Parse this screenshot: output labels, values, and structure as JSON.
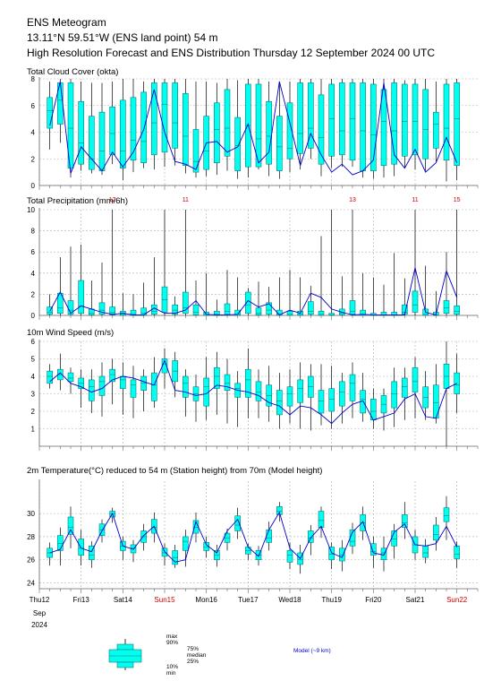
{
  "header": {
    "title": "ENS Meteogram",
    "location": "13.11°N 59.51°W (ENS land point) 54 m",
    "subtitle": "High Resolution Forecast and ENS Distribution Thursday 12 September 2024 00 UTC"
  },
  "colors": {
    "box": "#00ffee",
    "hires": "#0000cc",
    "grid": "#b0b0b0",
    "sunday": "#cc0000",
    "whisker": "#000000"
  },
  "x_axis": {
    "days": [
      "Thu12",
      "Fri13",
      "Sat14",
      "Sun15",
      "Mon16",
      "Tue17",
      "Wed18",
      "Thu19",
      "Fri20",
      "Sat21",
      "Sun22"
    ],
    "sunday_days": [
      "Sun15",
      "Sun22"
    ],
    "month": "Sep",
    "year": "2024"
  },
  "legend": {
    "max": "max",
    "p90": "90%",
    "p75": "75%",
    "median": "median",
    "p25": "25%",
    "p10": "10%",
    "min": "min",
    "hires": "Model (~9 km)"
  },
  "chart_data": [
    {
      "type": "box",
      "title": "Total Cloud Cover (okta)",
      "ylim": [
        0,
        8
      ],
      "yticks": [
        0,
        2,
        4,
        6,
        8
      ],
      "x_unit": "days from Thu12 00 UTC",
      "x": [
        0.25,
        0.5,
        0.75,
        1,
        1.25,
        1.5,
        1.75,
        2,
        2.25,
        2.5,
        2.75,
        3,
        3.25,
        3.5,
        3.75,
        4,
        4.25,
        4.5,
        4.75,
        5,
        5.25,
        5.5,
        5.75,
        6,
        6.25,
        6.5,
        6.75,
        7,
        7.25,
        7.5,
        7.75,
        8,
        8.25,
        8.5,
        8.75,
        9,
        9.25,
        9.5,
        9.75,
        10
      ],
      "whisker_low": [
        2.7,
        3.2,
        0.6,
        1.1,
        0.9,
        0.8,
        1.6,
        0.4,
        1.0,
        1.3,
        1.2,
        1.4,
        1.5,
        0.9,
        0.6,
        0.7,
        0.8,
        1.1,
        0.5,
        0.6,
        1.2,
        0.7,
        0.5,
        1.0,
        1.2,
        2.0,
        0.7,
        1.3,
        1.4,
        1.4,
        0.6,
        0.5,
        0.6,
        0.7,
        1.3,
        1.2,
        1.1,
        1.8,
        0.3,
        0.4
      ],
      "p25": [
        4.3,
        4.6,
        1.3,
        1.6,
        1.2,
        1.1,
        2.3,
        1.3,
        1.9,
        1.7,
        2.3,
        2.5,
        2.8,
        1.5,
        1.0,
        1.2,
        1.7,
        2.2,
        1.1,
        1.4,
        1.4,
        1.6,
        1.1,
        2.0,
        2.4,
        2.8,
        1.6,
        2.2,
        2.3,
        1.9,
        1.1,
        1.1,
        1.5,
        1.6,
        2.2,
        2.3,
        2.0,
        2.8,
        1.9,
        1.5
      ],
      "median": [
        5.6,
        6.4,
        4.3,
        3.2,
        2.0,
        2.6,
        3.9,
        2.6,
        3.4,
        3.3,
        4.7,
        6.1,
        4.7,
        3.7,
        1.8,
        2.6,
        4.2,
        4.3,
        3.0,
        4.5,
        3.5,
        3.7,
        2.9,
        2.8,
        3.9,
        4.3,
        3.6,
        5.0,
        4.1,
        5.0,
        4.1,
        3.8,
        4.8,
        4.1,
        4.8,
        4.8,
        4.2,
        4.6,
        4.3,
        5.0
      ],
      "p75": [
        6.6,
        7.7,
        7.7,
        6.3,
        5.2,
        5.5,
        5.9,
        6.4,
        6.6,
        7.0,
        7.7,
        7.7,
        7.7,
        6.9,
        4.2,
        5.2,
        6.2,
        7.2,
        5.1,
        7.6,
        7.6,
        6.3,
        5.2,
        6.2,
        7.7,
        7.7,
        6.8,
        7.6,
        7.7,
        7.7,
        7.7,
        7.6,
        7.2,
        7.7,
        7.6,
        7.6,
        7.2,
        5.5,
        7.6,
        7.7
      ],
      "whisker_high": [
        7.8,
        8,
        8,
        7.8,
        7.7,
        7.7,
        7.8,
        8,
        8,
        7.8,
        8,
        8,
        8,
        8,
        7.8,
        7.8,
        7.7,
        8,
        7.9,
        8,
        8,
        7.8,
        7.7,
        7.8,
        8,
        8,
        8,
        8,
        8,
        8,
        8,
        8,
        8,
        8,
        7.9,
        8,
        8,
        7.8,
        8,
        8
      ],
      "hires": [
        4.5,
        7.8,
        0.9,
        2.9,
        2.0,
        1.1,
        2.5,
        1.4,
        2.5,
        4.2,
        7.2,
        4.0,
        1.8,
        1.6,
        1.2,
        3.2,
        3.3,
        2.5,
        2.9,
        4.6,
        1.7,
        2.5,
        7.8,
        4.7,
        1.5,
        3.9,
        2.3,
        1.0,
        1.6,
        0.8,
        1.1,
        1.9,
        7.7,
        2.3,
        1.3,
        2.7,
        1.0,
        1.7,
        3.6,
        1.7
      ]
    },
    {
      "type": "box",
      "title": "Total Precipitation (mm/6h)",
      "ylim": [
        0,
        10
      ],
      "yticks": [
        0,
        2,
        4,
        6,
        8,
        10
      ],
      "clipped_max_labels": [
        {
          "x": 1.75,
          "label": "12"
        },
        {
          "x": 3.5,
          "label": "11"
        },
        {
          "x": 7.5,
          "label": "13"
        },
        {
          "x": 9.0,
          "label": "11"
        },
        {
          "x": 10.0,
          "label": "15"
        }
      ],
      "x": [
        0.25,
        0.5,
        0.75,
        1,
        1.25,
        1.5,
        1.75,
        2,
        2.25,
        2.5,
        2.75,
        3,
        3.25,
        3.5,
        3.75,
        4,
        4.25,
        4.5,
        4.75,
        5,
        5.25,
        5.5,
        5.75,
        6,
        6.25,
        6.5,
        6.75,
        7,
        7.25,
        7.5,
        7.75,
        8,
        8.25,
        8.5,
        8.75,
        9,
        9.25,
        9.5,
        9.75,
        10
      ],
      "whisker_low": [
        0,
        0,
        0,
        0,
        0,
        0,
        0,
        0,
        0,
        0,
        0,
        0,
        0,
        0,
        0,
        0,
        0,
        0,
        0,
        0,
        0,
        0,
        0,
        0,
        0,
        0,
        0,
        0,
        0,
        0,
        0,
        0,
        0,
        0,
        0,
        0,
        0,
        0,
        0,
        0
      ],
      "p25": [
        0.1,
        0.2,
        0.1,
        0.2,
        0.05,
        0.1,
        0.05,
        0,
        0,
        0,
        0.1,
        0.3,
        0.1,
        0.2,
        0.05,
        0,
        0,
        0.1,
        0,
        0.2,
        0.05,
        0.1,
        0,
        0,
        0,
        0.1,
        0,
        0,
        0.05,
        0.1,
        0,
        0,
        0,
        0,
        0.1,
        0.3,
        0,
        0,
        0.2,
        0.1
      ],
      "median": [
        0.3,
        0.7,
        0.5,
        0.9,
        0.2,
        0.5,
        0.3,
        0.1,
        0.1,
        0.2,
        0.4,
        1.5,
        0.5,
        0.7,
        0.3,
        0.1,
        0.1,
        0.4,
        0.1,
        1.0,
        0.2,
        0.5,
        0.1,
        0.1,
        0.1,
        0.4,
        0.1,
        0.05,
        0.2,
        0.4,
        0.1,
        0.05,
        0.05,
        0.05,
        0.3,
        1.0,
        0.1,
        0.05,
        0.7,
        0.4
      ],
      "p75": [
        0.8,
        2.1,
        1.4,
        3.3,
        0.6,
        1.2,
        0.8,
        0.4,
        0.5,
        0.7,
        1.0,
        2.7,
        1.0,
        2.2,
        1.0,
        0.3,
        0.4,
        1.1,
        0.5,
        2.2,
        0.7,
        1.2,
        0.5,
        0.4,
        0.4,
        1.3,
        0.4,
        0.2,
        0.6,
        1.4,
        0.5,
        0.2,
        0.3,
        0.3,
        1.0,
        2.3,
        0.6,
        0.3,
        1.4,
        0.9
      ],
      "whisker_high": [
        2.0,
        5.5,
        6.5,
        6.7,
        3.3,
        5.0,
        10,
        2.1,
        2.0,
        3.1,
        5.5,
        10,
        1.8,
        10,
        3.3,
        4.0,
        1.5,
        4.3,
        3.6,
        2.6,
        3.2,
        2.7,
        3.6,
        4.3,
        3.6,
        2.8,
        7.5,
        10,
        3.7,
        10,
        4.0,
        3.6,
        2.9,
        5.9,
        3.5,
        10,
        4.7,
        2.3,
        6.0,
        10
      ],
      "hires": [
        0.4,
        2.2,
        0.2,
        0.9,
        0.6,
        0.3,
        0.1,
        0.2,
        0.05,
        0.05,
        0.7,
        0.2,
        0.2,
        0.5,
        1.4,
        0.1,
        0.05,
        0.05,
        0.1,
        1.4,
        0.8,
        1.1,
        0.05,
        0.5,
        0.2,
        2.1,
        1.7,
        0.6,
        0.3,
        0.05,
        0.1,
        0.05,
        0.05,
        0.05,
        0.05,
        4.5,
        0.3,
        0.05,
        4.2,
        1.7
      ]
    },
    {
      "type": "box",
      "title": "10m Wind Speed (m/s)",
      "ylim": [
        0,
        6
      ],
      "yticks": [
        1,
        2,
        3,
        4,
        5,
        6
      ],
      "x": [
        0.25,
        0.5,
        0.75,
        1,
        1.25,
        1.5,
        1.75,
        2,
        2.25,
        2.5,
        2.75,
        3,
        3.25,
        3.5,
        3.75,
        4,
        4.25,
        4.5,
        4.75,
        5,
        5.25,
        5.5,
        5.75,
        6,
        6.25,
        6.5,
        6.75,
        7,
        7.25,
        7.5,
        7.75,
        8,
        8.25,
        8.5,
        8.75,
        9,
        9.25,
        9.5,
        9.75,
        10
      ],
      "whisker_low": [
        3.3,
        3.2,
        3.0,
        2.2,
        1.9,
        1.7,
        2.4,
        1.8,
        1.6,
        2.0,
        2.2,
        3.3,
        2.8,
        1.7,
        1.4,
        1.5,
        1.8,
        1.3,
        1.1,
        1.6,
        1.6,
        1.4,
        1.0,
        1.3,
        1.0,
        0.9,
        1.2,
        1.0,
        1.3,
        1.6,
        1.4,
        1.0,
        0.9,
        1.1,
        1.5,
        1.6,
        1.5,
        1.3,
        0,
        1.9
      ],
      "p25": [
        3.6,
        3.8,
        3.7,
        3.3,
        2.6,
        2.9,
        3.7,
        3.3,
        2.8,
        3.2,
        2.6,
        4.2,
        3.7,
        2.8,
        2.6,
        2.3,
        3.3,
        3.2,
        2.8,
        2.8,
        2.6,
        2.3,
        1.8,
        2.3,
        2.5,
        2.8,
        1.9,
        2.0,
        2.3,
        2.6,
        1.9,
        1.5,
        1.9,
        2.2,
        2.8,
        3.1,
        2.2,
        1.6,
        3.3,
        3.0
      ],
      "median": [
        4.0,
        4.1,
        3.9,
        3.6,
        3.4,
        3.7,
        4.1,
        3.8,
        3.5,
        3.6,
        3.5,
        4.7,
        4.3,
        3.6,
        3.0,
        3.4,
        4.0,
        3.6,
        3.3,
        3.8,
        3.1,
        2.9,
        2.6,
        3.0,
        3.3,
        3.4,
        2.6,
        2.7,
        3.1,
        3.6,
        2.7,
        2.0,
        2.4,
        3.0,
        3.4,
        3.7,
        2.8,
        2.5,
        4.0,
        3.5
      ],
      "p75": [
        4.3,
        4.4,
        4.2,
        3.9,
        3.8,
        4.0,
        4.4,
        4.0,
        3.8,
        4.0,
        4.2,
        5.0,
        4.9,
        4.0,
        3.4,
        3.9,
        4.5,
        4.1,
        3.6,
        4.4,
        3.7,
        3.5,
        3.2,
        3.4,
        3.8,
        4.0,
        3.2,
        3.3,
        3.7,
        4.1,
        3.2,
        2.7,
        2.9,
        3.7,
        3.9,
        4.5,
        3.4,
        3.5,
        4.7,
        4.2
      ],
      "whisker_high": [
        4.7,
        5.3,
        4.5,
        4.4,
        4.4,
        4.8,
        5.0,
        4.8,
        4.6,
        4.4,
        5.1,
        5.6,
        5.4,
        4.4,
        4.1,
        5.1,
        5.4,
        5.0,
        4.3,
        5.6,
        4.4,
        4.6,
        4.2,
        4.4,
        4.8,
        4.7,
        4.7,
        4.6,
        4.2,
        4.8,
        4.2,
        3.3,
        3.3,
        4.5,
        4.5,
        5.1,
        4.3,
        4.7,
        6.0,
        5.3
      ],
      "hires": [
        3.7,
        4.2,
        3.6,
        3.4,
        3.1,
        3.3,
        3.8,
        4.0,
        3.9,
        3.7,
        3.5,
        4.9,
        3.2,
        3.1,
        2.9,
        3.0,
        3.5,
        3.4,
        3.2,
        3.1,
        2.9,
        2.5,
        2.3,
        1.8,
        2.3,
        2.2,
        1.8,
        1.3,
        1.9,
        2.4,
        2.6,
        1.5,
        1.7,
        1.9,
        2.7,
        3.0,
        1.7,
        1.6,
        3.3,
        3.6
      ]
    },
    {
      "type": "box",
      "title": "2m Temperature(°C) reduced to 54 m (Station height) from 70m (Model height)",
      "ylim": [
        23.5,
        32.8
      ],
      "yticks": [
        24,
        26,
        28,
        30
      ],
      "x": [
        0.25,
        0.5,
        0.75,
        1,
        1.25,
        1.5,
        1.75,
        2,
        2.25,
        2.5,
        2.75,
        3,
        3.25,
        3.5,
        3.75,
        4,
        4.25,
        4.5,
        4.75,
        5,
        5.25,
        5.5,
        5.75,
        6,
        6.25,
        6.5,
        6.75,
        7,
        7.25,
        7.5,
        7.75,
        8,
        8.25,
        8.5,
        8.75,
        9,
        9.25,
        9.5,
        9.75,
        10
      ],
      "whisker_low": [
        25.5,
        25.5,
        27.0,
        25.5,
        25.3,
        27.5,
        29.2,
        26.0,
        25.8,
        26.8,
        27.5,
        25.5,
        25.3,
        25.4,
        27.5,
        26.2,
        25.4,
        26.8,
        27.8,
        26.0,
        25.5,
        26.8,
        29.3,
        25.2,
        24.8,
        26.4,
        27.9,
        25.2,
        25.0,
        26.5,
        27.7,
        25.3,
        25.0,
        26.1,
        27.8,
        26.0,
        25.7,
        26.8,
        27.7,
        25.3
      ],
      "p25": [
        26.2,
        26.8,
        28.2,
        26.4,
        26.0,
        28.1,
        29.7,
        26.8,
        26.6,
        27.5,
        28.3,
        26.3,
        25.6,
        26.8,
        28.3,
        26.8,
        26.0,
        27.5,
        28.5,
        26.5,
        26.0,
        27.5,
        29.9,
        25.8,
        25.6,
        27.5,
        28.8,
        26.0,
        25.9,
        27.2,
        28.5,
        26.4,
        26.0,
        27.2,
        28.8,
        26.6,
        26.2,
        27.7,
        29.3,
        26.1
      ],
      "median": [
        26.6,
        27.4,
        28.8,
        27.0,
        26.4,
        28.6,
        30.0,
        27.2,
        27.0,
        28.0,
        28.8,
        26.6,
        26.2,
        27.6,
        28.8,
        27.1,
        26.4,
        27.9,
        29.0,
        26.8,
        26.4,
        27.9,
        30.2,
        26.4,
        26.0,
        27.9,
        29.4,
        26.5,
        26.4,
        27.6,
        29.2,
        26.7,
        26.6,
        27.8,
        29.2,
        27.3,
        26.6,
        28.2,
        29.8,
        26.5
      ],
      "p75": [
        27.0,
        28.1,
        29.7,
        27.8,
        27.2,
        29.1,
        30.2,
        27.6,
        27.3,
        28.5,
        29.5,
        27.0,
        26.8,
        28.0,
        29.4,
        27.5,
        26.8,
        28.3,
        29.8,
        27.1,
        26.8,
        28.6,
        30.6,
        26.8,
        26.6,
        28.5,
        30.2,
        27.1,
        27.0,
        28.6,
        29.9,
        27.4,
        27.0,
        28.5,
        29.9,
        28.0,
        27.2,
        29.0,
        30.5,
        27.2
      ],
      "whisker_high": [
        27.5,
        28.8,
        30.6,
        28.6,
        27.6,
        29.5,
        30.5,
        28.0,
        27.7,
        29.1,
        30.1,
        27.4,
        27.3,
        28.6,
        30.1,
        28.0,
        27.3,
        28.7,
        30.5,
        27.4,
        27.2,
        29.3,
        31.0,
        27.5,
        27.3,
        29.0,
        30.6,
        27.5,
        27.7,
        29.2,
        30.6,
        28.0,
        28.0,
        29.1,
        31.0,
        28.6,
        27.8,
        29.7,
        31.5,
        27.6
      ],
      "hires": [
        26.6,
        26.9,
        28.6,
        27.0,
        26.7,
        28.5,
        30.0,
        27.2,
        26.9,
        28.1,
        28.9,
        26.7,
        25.8,
        26.0,
        29.3,
        27.3,
        26.6,
        28.5,
        29.5,
        27.1,
        26.3,
        28.6,
        30.1,
        27.0,
        26.1,
        27.9,
        28.9,
        26.6,
        26.2,
        28.4,
        29.3,
        26.6,
        26.4,
        28.4,
        29.1,
        27.3,
        27.2,
        27.4,
        28.9,
        27.1
      ]
    }
  ]
}
